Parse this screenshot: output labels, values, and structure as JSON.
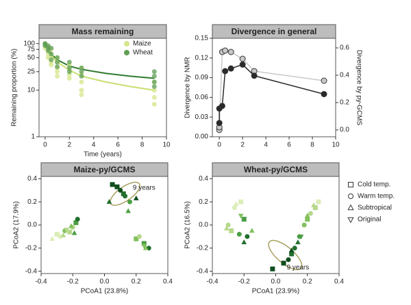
{
  "chart_data": [
    {
      "type": "scatter",
      "title": "Mass remaining",
      "x_label": "Time (years)",
      "y_label": "Remaining proportion (%)",
      "log_y": true,
      "xlim": [
        -0.5,
        10
      ],
      "xticks": [
        0,
        2,
        4,
        6,
        8,
        10
      ],
      "ylim": [
        1,
        130
      ],
      "yticks": [
        1,
        10,
        25,
        50,
        75,
        100
      ],
      "legend": "upper right",
      "series": [
        {
          "name": "Maize",
          "color": "#d4e68a",
          "marker": "circle",
          "x": [
            0,
            0,
            0,
            0,
            0.25,
            0.25,
            0.25,
            0.25,
            0.5,
            0.5,
            0.5,
            0.5,
            1,
            1,
            1,
            1,
            1,
            2,
            2,
            2,
            2,
            3,
            3,
            3,
            3,
            3,
            9,
            9,
            9,
            9
          ],
          "values": [
            100,
            95,
            90,
            80,
            85,
            70,
            60,
            50,
            75,
            55,
            40,
            35,
            50,
            40,
            30,
            25,
            20,
            35,
            28,
            22,
            18,
            30,
            22,
            15,
            10,
            8,
            15,
            10,
            7,
            5
          ]
        },
        {
          "name": "Wheat",
          "color": "#5f9e55",
          "marker": "circle",
          "x": [
            0,
            0,
            0,
            0.25,
            0.25,
            0.25,
            0.5,
            0.5,
            0.5,
            1,
            1,
            1,
            2,
            2,
            2,
            3,
            3,
            3,
            9,
            9,
            9,
            9
          ],
          "values": [
            100,
            98,
            90,
            90,
            80,
            70,
            80,
            60,
            45,
            50,
            40,
            32,
            40,
            30,
            25,
            30,
            25,
            20,
            25,
            20,
            15,
            12
          ]
        }
      ],
      "fit_lines": [
        {
          "color": "#c8df70",
          "x": [
            0,
            0.5,
            1,
            2,
            3,
            5,
            7,
            9
          ],
          "values": [
            100,
            55,
            40,
            27,
            20,
            15,
            12,
            10
          ]
        },
        {
          "color": "#2f7a2f",
          "x": [
            0,
            0.5,
            1,
            2,
            3,
            5,
            7,
            9
          ],
          "values": [
            100,
            60,
            45,
            33,
            28,
            23,
            20,
            18
          ]
        }
      ]
    },
    {
      "type": "line",
      "title": "Divergence in general",
      "y_label": "Divergence by NMR",
      "y2_label": "Divergence by py-GCMS",
      "xlim": [
        -0.6,
        10
      ],
      "xticks": [
        0,
        2,
        4,
        6,
        8,
        10
      ],
      "ylim": [
        0,
        0.15
      ],
      "yticks": [
        {
          "value": 0,
          "label": "0.00"
        },
        {
          "value": 0.03,
          "label": "0.03"
        },
        {
          "value": 0.06,
          "label": "0.06"
        },
        {
          "value": 0.09,
          "label": "0.09"
        },
        {
          "value": 0.12,
          "label": "0.12"
        },
        {
          "value": 0.15,
          "label": "0.15"
        }
      ],
      "y2lim": [
        -0.05,
        0.67
      ],
      "y2ticks": [
        {
          "value": 0,
          "label": "0.0"
        },
        {
          "value": 0.2,
          "label": "0.2"
        },
        {
          "value": 0.4,
          "label": "0.4"
        },
        {
          "value": 0.6,
          "label": "0.6"
        }
      ],
      "series": [
        {
          "color": "#c8c8c8",
          "marker": "circle",
          "axis": "y2",
          "x": [
            0,
            0,
            0.25,
            0.5,
            1,
            2,
            3,
            9
          ],
          "values": [
            0.0,
            0.02,
            0.57,
            0.58,
            0.57,
            0.52,
            0.43,
            0.36
          ]
        },
        {
          "color": "#2a2a2a",
          "marker": "circle",
          "x": [
            0,
            0,
            0.25,
            0.5,
            1,
            2,
            3,
            9
          ],
          "values": [
            0.021,
            0.043,
            0.047,
            0.1,
            0.104,
            0.11,
            0.093,
            0.065
          ]
        }
      ]
    },
    {
      "type": "scatter",
      "title": "Maize-py/GCMS",
      "x_label": "PCoA1 (23.8%)",
      "y_label": "PCoA2 (17.9%)",
      "xlim": [
        -0.4,
        0.4
      ],
      "xticks": [
        -0.4,
        -0.2,
        {
          "value": 0,
          "label": "0.0"
        },
        0.2,
        0.4
      ],
      "ylim": [
        -0.42,
        0.42
      ],
      "yticks": [
        -0.4,
        -0.2,
        {
          "value": 0,
          "label": "0.0"
        },
        0.2,
        0.4
      ],
      "annotations": [
        {
          "text": "9 years",
          "x": 0.25,
          "y": 0.32,
          "ellipse": {
            "cx": 0.13,
            "cy": 0.27,
            "rx": 0.11,
            "ry": 0.06,
            "angle": 35
          }
        }
      ],
      "series": [
        {
          "marker": "square",
          "x": [
            -0.3,
            -0.22,
            -0.18,
            0.05,
            0.08,
            0.12,
            0.2,
            0.25
          ],
          "values": [
            -0.08,
            -0.06,
            0.02,
            0.35,
            0.33,
            0.27,
            -0.12,
            -0.16
          ],
          "colors": [
            "#dcedb8",
            "#b5d88a",
            "#4c9e44",
            "#0f4d1d",
            "#0f4d1d",
            "#236f2e",
            "#82c05c",
            "#4c9e44"
          ]
        },
        {
          "marker": "circle",
          "x": [
            -0.28,
            -0.25,
            -0.2,
            -0.17,
            0.1,
            0.13,
            0.16,
            0.22,
            0.28
          ],
          "values": [
            -0.1,
            -0.05,
            -0.02,
            0.05,
            0.3,
            0.25,
            0.2,
            -0.1,
            -0.2
          ],
          "colors": [
            "#dcedb8",
            "#82c05c",
            "#b5d88a",
            "#236f2e",
            "#0f4d1d",
            "#236f2e",
            "#4c9e44",
            "#b5d88a",
            "#236f2e"
          ]
        },
        {
          "marker": "triangle",
          "x": [
            -0.33,
            -0.26,
            -0.21,
            -0.19,
            0.03,
            0.15,
            0.2,
            0.26
          ],
          "values": [
            -0.12,
            -0.09,
            -0.01,
            -0.07,
            0.2,
            0.12,
            0.23,
            -0.2
          ],
          "colors": [
            "#dcedb8",
            "#b5d88a",
            "#82c05c",
            "#4c9e44",
            "#236f2e",
            "#4c9e44",
            "#0f4d1d",
            "#82c05c"
          ]
        },
        {
          "marker": "triangle-down",
          "x": [
            -0.24,
            0.25
          ],
          "values": [
            -0.04,
            -0.18
          ],
          "colors": [
            "#b5d88a",
            "#82c05c"
          ]
        }
      ]
    },
    {
      "type": "scatter",
      "title": "Wheat-py/GCMS",
      "x_label": "PCoA1 (23.9%)",
      "y_label": "PCoA2 (16.5%)",
      "xlim": [
        -0.4,
        0.4
      ],
      "xticks": [
        -0.4,
        -0.2,
        {
          "value": 0,
          "label": "0.0"
        },
        0.2,
        0.4
      ],
      "ylim": [
        -0.42,
        0.42
      ],
      "yticks": [
        -0.4,
        -0.2,
        {
          "value": 0,
          "label": "0.0"
        },
        0.2,
        0.4
      ],
      "legend": "right",
      "annotations": [
        {
          "text": "9 years",
          "x": 0.14,
          "y": -0.37,
          "ellipse": {
            "cx": 0.06,
            "cy": -0.26,
            "rx": 0.13,
            "ry": 0.07,
            "angle": -40
          }
        }
      ],
      "series": [
        {
          "name": "Cold temp.",
          "marker": "square",
          "x": [
            -0.28,
            -0.22,
            -0.2,
            -0.02,
            0.05,
            0.1,
            0.2,
            0.25,
            0.27
          ],
          "values": [
            -0.05,
            0.2,
            0.05,
            -0.38,
            -0.33,
            -0.25,
            0.05,
            0.15,
            0.2
          ],
          "colors": [
            "#b5d88a",
            "#dcedb8",
            "#4c9e44",
            "#0f4d1d",
            "#0f4d1d",
            "#236f2e",
            "#82c05c",
            "#b5d88a",
            "#dcedb8"
          ]
        },
        {
          "name": "Warm temp.",
          "marker": "circle",
          "x": [
            -0.3,
            -0.26,
            -0.23,
            -0.18,
            0.08,
            0.12,
            0.15,
            0.18,
            0.22
          ],
          "values": [
            0.0,
            0.15,
            -0.08,
            -0.1,
            -0.3,
            -0.2,
            -0.1,
            0.0,
            0.1
          ],
          "colors": [
            "#b5d88a",
            "#dcedb8",
            "#4c9e44",
            "#236f2e",
            "#0f4d1d",
            "#236f2e",
            "#4c9e44",
            "#82c05c",
            "#b5d88a"
          ]
        },
        {
          "name": "Subtropical",
          "marker": "triangle",
          "x": [
            -0.31,
            -0.25,
            -0.2,
            -0.15,
            0.1,
            0.14,
            0.2,
            0.24
          ],
          "values": [
            -0.03,
            0.18,
            -0.15,
            -0.05,
            -0.22,
            -0.15,
            0.08,
            0.17
          ],
          "colors": [
            "#b5d88a",
            "#dcedb8",
            "#236f2e",
            "#82c05c",
            "#0f4d1d",
            "#236f2e",
            "#82c05c",
            "#b5d88a"
          ]
        },
        {
          "name": "Original",
          "marker": "triangle-down",
          "x": [
            -0.22,
            0.16
          ],
          "values": [
            0.08,
            -0.1
          ],
          "colors": [
            "#82c05c",
            "#4c9e44"
          ]
        }
      ]
    }
  ]
}
